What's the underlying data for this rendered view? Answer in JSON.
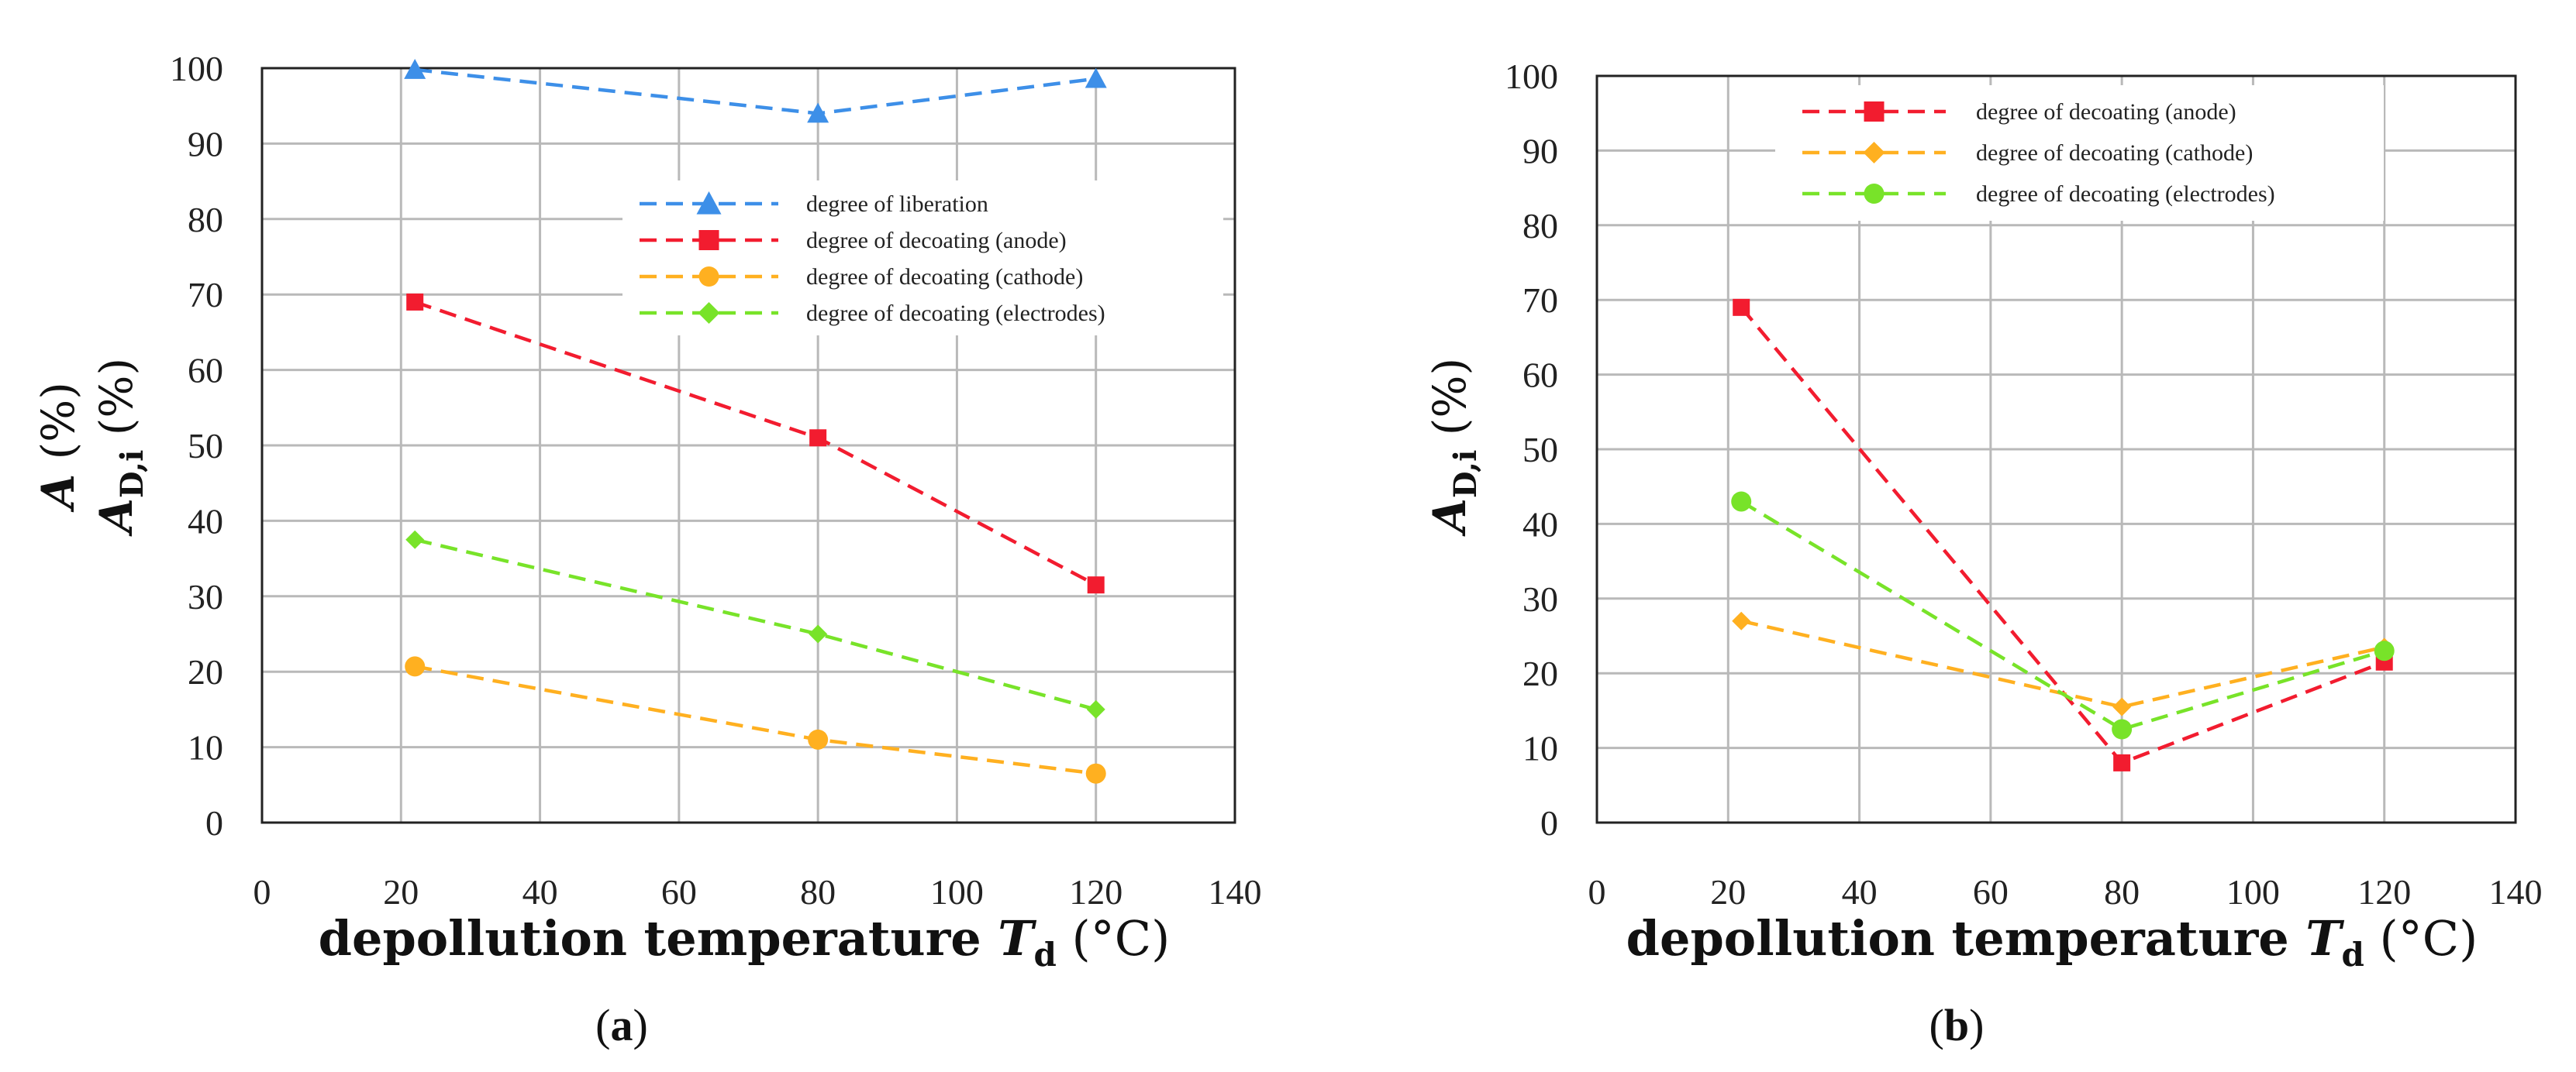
{
  "colors": {
    "liberation": "#3d8fe8",
    "anode": "#f21c2f",
    "cathode": "#ffb020",
    "electrodes": "#78e329",
    "grid": "#b9b9b9",
    "axis": "#222222"
  },
  "chart_data": [
    {
      "type": "line",
      "panel_label": "(a)",
      "panel_letter": "a",
      "x": [
        22,
        80,
        120
      ],
      "xlim": [
        0,
        140
      ],
      "ylim": [
        0,
        100
      ],
      "xticks": [
        "0",
        "20",
        "40",
        "60",
        "80",
        "100",
        "120",
        "140"
      ],
      "yticks": [
        "0",
        "10",
        "20",
        "30",
        "40",
        "50",
        "60",
        "70",
        "80",
        "90",
        "100"
      ],
      "xlabel_main": "depollution temperature ",
      "xlabel_var": "T",
      "xlabel_sub": "d",
      "xlabel_unit": " (°C)",
      "ylabel_line1_var": "A",
      "ylabel_line1_unit": " (%)",
      "ylabel_line2_var": "A",
      "ylabel_line2_sub": "D,i",
      "ylabel_line2_unit": " (%)",
      "legend_position": "center-right",
      "series": [
        {
          "name": "degree of liberation",
          "color_key": "liberation",
          "marker": "triangle",
          "values": [
            99.8,
            94,
            98.6
          ]
        },
        {
          "name": "degree of decoating (anode)",
          "color_key": "anode",
          "marker": "square",
          "values": [
            69,
            51,
            31.5
          ]
        },
        {
          "name": "degree of decoating (cathode)",
          "color_key": "cathode",
          "marker": "circle",
          "values": [
            20.7,
            11,
            6.5
          ]
        },
        {
          "name": "degree of decoating (electrodes)",
          "color_key": "electrodes",
          "marker": "diamond",
          "values": [
            37.5,
            25,
            15
          ]
        }
      ]
    },
    {
      "type": "line",
      "panel_label": "(b)",
      "panel_letter": "b",
      "x": [
        22,
        80,
        120
      ],
      "xlim": [
        0,
        140
      ],
      "ylim": [
        0,
        100
      ],
      "xticks": [
        "0",
        "20",
        "40",
        "60",
        "80",
        "100",
        "120",
        "140"
      ],
      "yticks": [
        "0",
        "10",
        "20",
        "30",
        "40",
        "50",
        "60",
        "70",
        "80",
        "90",
        "100"
      ],
      "xlabel_main": "depollution temperature ",
      "xlabel_var": "T",
      "xlabel_sub": "d",
      "xlabel_unit": " (°C)",
      "ylabel_line1_var": "A",
      "ylabel_line1_sub": "D,i",
      "ylabel_line1_unit": " (%)",
      "legend_position": "top-center",
      "series": [
        {
          "name": "degree of decoating (anode)",
          "color_key": "anode",
          "marker": "square",
          "values": [
            69,
            8,
            21.5
          ]
        },
        {
          "name": "degree of decoating (cathode)",
          "color_key": "cathode",
          "marker": "diamond",
          "values": [
            27,
            15.5,
            23.5
          ]
        },
        {
          "name": "degree of decoating (electrodes)",
          "color_key": "electrodes",
          "marker": "circle",
          "values": [
            43,
            12.5,
            23
          ]
        }
      ]
    }
  ]
}
